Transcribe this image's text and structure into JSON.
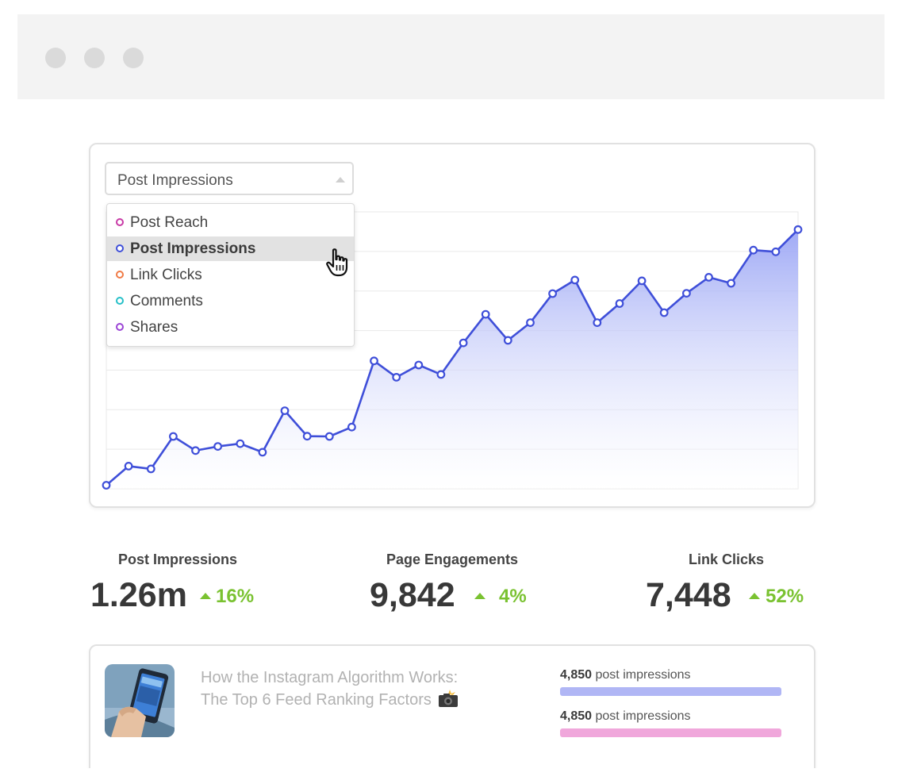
{
  "colors": {
    "line": "#3f4fd9",
    "area_top": "#9aa5f5",
    "grid": "#e9e9e9",
    "positive": "#7ac231",
    "bar_impressions": "#b0b6f5",
    "bar_secondary": "#f0a7db"
  },
  "window": {
    "controls": [
      "close",
      "minimize",
      "maximize"
    ]
  },
  "selector": {
    "selected": "Post Impressions",
    "options": [
      {
        "label": "Post Reach",
        "color": "#c83aa6"
      },
      {
        "label": "Post Impressions",
        "color": "#3f4fd9"
      },
      {
        "label": "Link Clicks",
        "color": "#f07a45"
      },
      {
        "label": "Comments",
        "color": "#27c0c8"
      },
      {
        "label": "Shares",
        "color": "#9c45d6"
      }
    ],
    "cursor_icon": "hand-pointer-icon"
  },
  "chart_data": {
    "type": "area",
    "series": [
      {
        "values": [
          1.3,
          8.2,
          7.2,
          18.9,
          13.8,
          15.3,
          16.3,
          13.2,
          28.2,
          19.0,
          18.9,
          22.3,
          46.2,
          40.3,
          44.7,
          41.3,
          52.7,
          63.0,
          53.6,
          60.0,
          70.5,
          75.4,
          60.0,
          66.9,
          75.1,
          63.6,
          70.6,
          76.4,
          74.2,
          86.2,
          85.6,
          93.6
        ]
      }
    ],
    "ylim": [
      0,
      100
    ],
    "grid": true,
    "legend": "none"
  },
  "metrics": [
    {
      "label": "Post Impressions",
      "value": "1.26m",
      "change": "16%"
    },
    {
      "label": "Page Engagements",
      "value": "9,842",
      "change": "4%"
    },
    {
      "label": "Link Clicks",
      "value": "7,448",
      "change": "52%"
    }
  ],
  "post": {
    "title_line1": "How the Instagram Algorithm Works:",
    "title_line2": "The Top 6 Feed Ranking Factors",
    "title_icon": "camera-flash-icon",
    "thumbnail_icon": "phone-in-hand-icon",
    "stats": [
      {
        "value": "4,850",
        "unit": "post impressions"
      },
      {
        "value": "4,850",
        "unit": "post impressions"
      }
    ]
  }
}
